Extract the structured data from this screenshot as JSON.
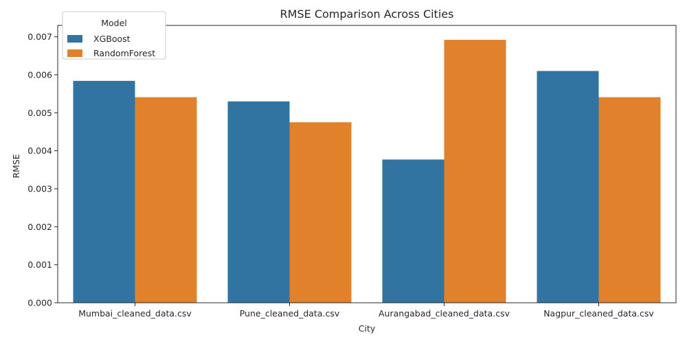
{
  "chart_data": {
    "type": "bar",
    "title": "RMSE Comparison Across Cities",
    "xlabel": "City",
    "ylabel": "RMSE",
    "categories": [
      "Mumbai_cleaned_data.csv",
      "Pune_cleaned_data.csv",
      "Aurangabad_cleaned_data.csv",
      "Nagpur_cleaned_data.csv"
    ],
    "series": [
      {
        "name": "XGBoost",
        "color": "#3274a1",
        "values": [
          0.00584,
          0.0053,
          0.00377,
          0.0061
        ]
      },
      {
        "name": "RandomForest",
        "color": "#e1812c",
        "values": [
          0.00541,
          0.00475,
          0.00692,
          0.00541
        ]
      }
    ],
    "ylim": [
      0,
      0.0073
    ],
    "yticks": [
      "0.000",
      "0.001",
      "0.002",
      "0.003",
      "0.004",
      "0.005",
      "0.006",
      "0.007"
    ],
    "legend": {
      "title": "Model",
      "position": "top-left"
    },
    "grid": false
  }
}
